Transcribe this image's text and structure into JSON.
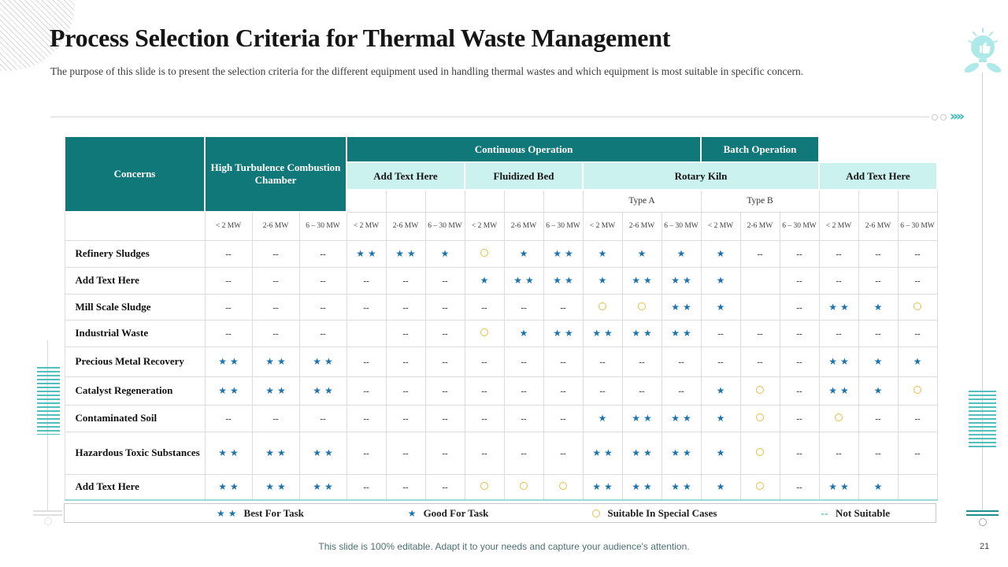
{
  "slide": {
    "title": "Process Selection Criteria for Thermal Waste Management",
    "subtitle": "The purpose of this slide is to present the selection criteria for the different equipment used in handling thermal wastes and which equipment is most suitable in specific concern.",
    "footer": "This slide is 100% editable. Adapt it to your needs and capture your audience's attention.",
    "page_number": "21"
  },
  "decor": {
    "chevrons": "››››"
  },
  "symbols": {
    "star": "★",
    "dash": "--"
  },
  "colors": {
    "teal_header": "#117879",
    "cyan_band": "#ccf2f0",
    "star_blue": "#1e73ad",
    "circle_gold": "#e3bf47",
    "legend_dash_teal": "#2bb3a5",
    "accent_teal": "#35b8ba"
  },
  "table": {
    "corner_header": "Concerns",
    "col1_header": "High Turbulence Combustion Chamber",
    "top_groups": [
      {
        "label": "Continuous Operation",
        "span": 9
      },
      {
        "label": "Batch Operation",
        "span": 3
      }
    ],
    "equipment_groups": [
      {
        "label": "Add Text Here",
        "span": 3
      },
      {
        "label": "Fluidized Bed",
        "span": 3
      },
      {
        "label": "Rotary Kiln",
        "span": 6
      },
      {
        "label": "Add Text Here",
        "span": 3
      }
    ],
    "subtypes": [
      {
        "label": "Type A"
      },
      {
        "label": "Type B"
      }
    ],
    "mw_labels": [
      "< 2 MW",
      "2-6 MW",
      "6 – 30 MW"
    ],
    "rows": [
      {
        "label": "Refinery Sludges",
        "cells": [
          "--",
          "--",
          "--",
          "**",
          "**",
          "*",
          "o",
          "*",
          "**",
          "*",
          "*",
          "*",
          "*",
          "--",
          "--",
          "--",
          "--",
          "--"
        ]
      },
      {
        "label": "Add Text Here",
        "cells": [
          "--",
          "--",
          "--",
          "--",
          "--",
          "--",
          "*",
          "**",
          "**",
          "*",
          "**",
          "**",
          "*",
          "",
          "--",
          "--",
          "--",
          "--"
        ]
      },
      {
        "label": "Mill Scale Sludge",
        "cells": [
          "--",
          "--",
          "--",
          "--",
          "--",
          "--",
          "--",
          "--",
          "--",
          "o",
          "o",
          "**",
          "*",
          "",
          "--",
          "**",
          "*",
          "o"
        ]
      },
      {
        "label": "Industrial Waste",
        "cells": [
          "--",
          "--",
          "--",
          "",
          "--",
          "--",
          "o",
          "*",
          "**",
          "**",
          "**",
          "**",
          "--",
          "--",
          "--",
          "--",
          "--",
          "--"
        ]
      },
      {
        "label": "Precious Metal Recovery",
        "cells": [
          "**",
          "**",
          "**",
          "--",
          "--",
          "--",
          "--",
          "--",
          "--",
          "--",
          "--",
          "--",
          "--",
          "--",
          "--",
          "**",
          "*",
          "*"
        ]
      },
      {
        "label": "Catalyst Regeneration",
        "cells": [
          "**",
          "**",
          "**",
          "--",
          "--",
          "--",
          "--",
          "--",
          "--",
          "--",
          "--",
          "--",
          "*",
          "o",
          "--",
          "**",
          "*",
          "o"
        ]
      },
      {
        "label": "Contaminated Soil",
        "cells": [
          "--",
          "--",
          "--",
          "--",
          "--",
          "--",
          "--",
          "--",
          "--",
          "*",
          "**",
          "**",
          "*",
          "o",
          "--",
          "o",
          "--",
          "--"
        ]
      },
      {
        "label": "Hazardous Toxic Substances",
        "cells": [
          "**",
          "**",
          "**",
          "--",
          "--",
          "--",
          "--",
          "--",
          "--",
          "**",
          "**",
          "**",
          "*",
          "o",
          "--",
          "--",
          "--",
          "--"
        ]
      },
      {
        "label": "Add Text Here",
        "cells": [
          "**",
          "**",
          "**",
          "--",
          "--",
          "--",
          "o",
          "o",
          "o",
          "**",
          "**",
          "**",
          "*",
          "o",
          "--",
          "**",
          "*",
          ""
        ]
      }
    ]
  },
  "legend": {
    "items": [
      {
        "symbol": "**",
        "label": "Best For Task"
      },
      {
        "symbol": "*",
        "label": "Good For Task"
      },
      {
        "symbol": "o",
        "label": "Suitable In Special Cases"
      },
      {
        "symbol": "--",
        "label": "Not Suitable"
      }
    ]
  }
}
